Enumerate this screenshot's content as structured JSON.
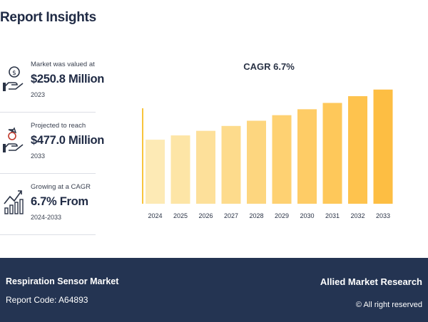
{
  "header": {
    "title": "Report Insights"
  },
  "stats": [
    {
      "icon": "money-hand-icon",
      "label": "Market was valued at",
      "value": "$250.8 Million",
      "year": "2023"
    },
    {
      "icon": "growth-hand-icon",
      "label": "Projected to reach",
      "value": "$477.0 Million",
      "year": "2033"
    },
    {
      "icon": "bar-growth-icon",
      "label": "Growing at a CAGR",
      "value": "6.7% From",
      "year": "2024-2033"
    }
  ],
  "chart_data": {
    "type": "bar",
    "title": "CAGR 6.7%",
    "xlabel": "",
    "ylabel": "",
    "categories": [
      "2024",
      "2025",
      "2026",
      "2027",
      "2028",
      "2029",
      "2030",
      "2031",
      "2032",
      "2033"
    ],
    "values": [
      267.6,
      285.5,
      304.6,
      325.0,
      346.8,
      370.0,
      394.8,
      421.2,
      449.4,
      477.0
    ],
    "ylim": [
      0,
      500
    ],
    "grid": false,
    "legend": "none",
    "colors": [
      "#fdeab5",
      "#fde5a6",
      "#fde09a",
      "#fddb8c",
      "#fdd67f",
      "#fed172",
      "#fecc66",
      "#fec85a",
      "#fec34e",
      "#fdbe43"
    ],
    "axis_color": "#f8c43c"
  },
  "footer": {
    "market": "Respiration Sensor Market",
    "code": "Report Code: A64893",
    "brand": "Allied Market Research",
    "copyright": "© All right reserved"
  }
}
